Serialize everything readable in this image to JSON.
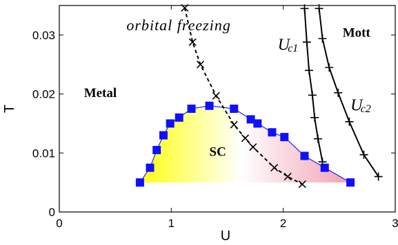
{
  "chart_data": {
    "type": "scatter",
    "title": "",
    "xlabel": "U",
    "ylabel": "T",
    "xlim": [
      0,
      3
    ],
    "ylim": [
      0,
      0.035
    ],
    "xticks": [
      "0",
      "1",
      "2",
      "3"
    ],
    "yticks": [
      "0",
      "0.01",
      "0.02",
      "0.03"
    ],
    "grid": false,
    "colors": {
      "sc_marker": "#1010ff",
      "sc_line": "#2020ff",
      "fill_left": "#ffff10",
      "fill_right": "#f2a0b2"
    },
    "series": [
      {
        "id": "sc-dome",
        "marker": "square",
        "line": "solid",
        "points": [
          [
            0.72,
            0.005
          ],
          [
            0.81,
            0.0075
          ],
          [
            0.87,
            0.0105
          ],
          [
            0.93,
            0.013
          ],
          [
            0.99,
            0.015
          ],
          [
            1.07,
            0.016
          ],
          [
            1.18,
            0.0175
          ],
          [
            1.34,
            0.018
          ],
          [
            1.56,
            0.0175
          ],
          [
            1.71,
            0.0157
          ],
          [
            1.77,
            0.015
          ],
          [
            1.9,
            0.0135
          ],
          [
            2.01,
            0.0127
          ],
          [
            2.19,
            0.0095
          ],
          [
            2.37,
            0.0075
          ],
          [
            2.6,
            0.005
          ]
        ]
      },
      {
        "id": "orbital-freezing",
        "marker": "x",
        "line": "dashed",
        "points": [
          [
            1.12,
            0.0346
          ],
          [
            1.19,
            0.0288
          ],
          [
            1.26,
            0.025
          ],
          [
            1.4,
            0.0197
          ],
          [
            1.56,
            0.0148
          ],
          [
            1.66,
            0.0125
          ],
          [
            1.73,
            0.011
          ],
          [
            1.92,
            0.0075
          ],
          [
            2.04,
            0.006
          ],
          [
            2.17,
            0.0047
          ]
        ]
      },
      {
        "id": "uc1",
        "marker": "plus",
        "line": "solid",
        "points": [
          [
            2.19,
            0.0345
          ],
          [
            2.21,
            0.0288
          ],
          [
            2.23,
            0.024
          ],
          [
            2.26,
            0.0198
          ],
          [
            2.28,
            0.016
          ],
          [
            2.31,
            0.0124
          ],
          [
            2.35,
            0.0085
          ]
        ]
      },
      {
        "id": "uc2",
        "marker": "plus",
        "line": "solid",
        "points": [
          [
            2.32,
            0.0345
          ],
          [
            2.35,
            0.0294
          ],
          [
            2.41,
            0.0245
          ],
          [
            2.49,
            0.0202
          ],
          [
            2.59,
            0.0153
          ],
          [
            2.72,
            0.0097
          ],
          [
            2.85,
            0.006
          ]
        ]
      }
    ],
    "annotations": {
      "metal": {
        "text": "Metal",
        "at": [
          0.22,
          0.0195
        ]
      },
      "sc": {
        "text": "SC",
        "at": [
          1.34,
          0.0095
        ]
      },
      "mott": {
        "text": "Mott",
        "at": [
          2.53,
          0.0297
        ]
      },
      "orbital": {
        "text": "orbital freezing",
        "at": [
          0.6,
          0.0308
        ]
      },
      "uc1_main": {
        "text": "U",
        "at": [
          1.95,
          0.0275
        ]
      },
      "uc1_sub": {
        "text": "c1",
        "at": [
          2.04,
          0.0272
        ]
      },
      "uc2_main": {
        "text": "U",
        "at": [
          2.6,
          0.0172
        ]
      },
      "uc2_sub": {
        "text": "c2",
        "at": [
          2.69,
          0.0169
        ]
      }
    }
  }
}
